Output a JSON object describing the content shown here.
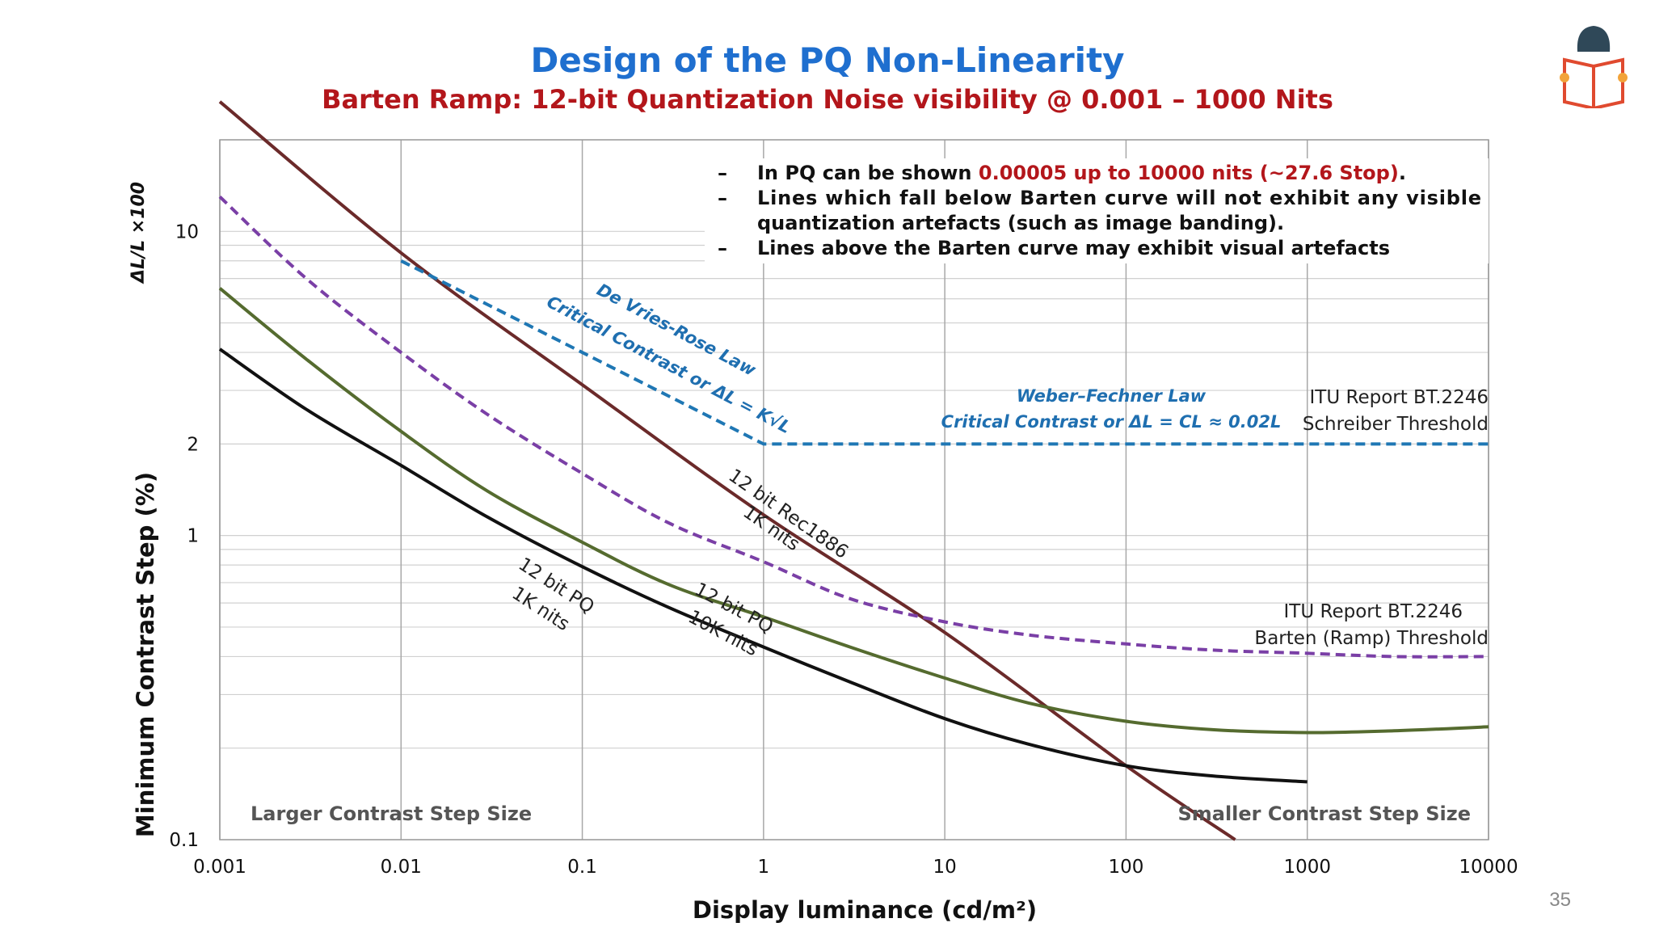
{
  "slide": {
    "title": "Design of the PQ Non-Linearity",
    "subtitle": "Barten Ramp:  12-bit Quantization Noise visibility @ 0.001 – 1000 Nits",
    "page_number": "35",
    "logo_icon": "reader-book-icon"
  },
  "notes": [
    {
      "text_before": "In PQ can be shown ",
      "highlight": "0.00005 up to 10000 nits (~27.6 Stop)",
      "text_after": "."
    },
    {
      "text_before": "Lines which fall below Barten curve will not exhibit any visible",
      "highlight": "",
      "text_after": ""
    },
    {
      "text_before": "quantization artefacts (such as image banding).",
      "highlight": "",
      "text_after": ""
    },
    {
      "text_before": "Lines above the Barten curve may exhibit visual artefacts",
      "highlight": "",
      "text_after": ""
    }
  ],
  "chart_data": {
    "type": "line",
    "xlabel": "Display luminance (cd/m²)",
    "ylabel": "Minimum Contrast Step (%)",
    "ylabel_formula": "ΔL/L ×100",
    "x_scale": "log",
    "y_scale": "log",
    "xlim": [
      0.001,
      10000
    ],
    "ylim": [
      0.1,
      20
    ],
    "x_ticks": [
      0.001,
      0.01,
      0.1,
      1,
      10,
      100,
      1000,
      10000
    ],
    "x_tick_labels": [
      "0.001",
      "0.01",
      "0.1",
      "1",
      "10",
      "100",
      "1000",
      "10000"
    ],
    "y_ticks": [
      0.1,
      1,
      2,
      10
    ],
    "y_tick_labels": [
      "0.1",
      "1",
      "2",
      "10"
    ],
    "grid": true,
    "series": [
      {
        "name": "12 bit Rec1886 1K nits",
        "color": "#6b2a2a",
        "dash": "solid",
        "x": [
          0.001,
          0.01,
          0.1,
          1,
          10,
          100,
          400
        ],
        "y": [
          26.7,
          8.5,
          3.13,
          1.17,
          0.48,
          0.175,
          0.1
        ]
      },
      {
        "name": "Barten (Ramp) Threshold",
        "color": "#7a3fa6",
        "dash": "dashed",
        "x": [
          0.001,
          0.003,
          0.01,
          0.03,
          0.1,
          0.3,
          1,
          3,
          10,
          30,
          100,
          300,
          1000,
          3000,
          10000
        ],
        "y": [
          13,
          7.0,
          4.0,
          2.5,
          1.6,
          1.1,
          0.82,
          0.62,
          0.52,
          0.47,
          0.44,
          0.42,
          0.41,
          0.4,
          0.4
        ]
      },
      {
        "name": "De Vries-Rose / Weber-Fechner (Schreiber Threshold)",
        "color": "#1f77b4",
        "dash": "dashed",
        "x": [
          0.01,
          1,
          10000
        ],
        "y": [
          8.0,
          2.0,
          2.0
        ]
      },
      {
        "name": "12 bit PQ 10K nits",
        "color": "#556b2f",
        "dash": "solid",
        "x": [
          0.001,
          0.003,
          0.01,
          0.03,
          0.1,
          0.3,
          1,
          3,
          10,
          30,
          100,
          300,
          1000,
          3000,
          10000
        ],
        "y": [
          6.5,
          3.8,
          2.2,
          1.4,
          0.95,
          0.69,
          0.54,
          0.43,
          0.34,
          0.28,
          0.245,
          0.23,
          0.225,
          0.228,
          0.235
        ]
      },
      {
        "name": "12 bit PQ 1K nits",
        "color": "#111111",
        "dash": "solid",
        "x": [
          0.001,
          0.003,
          0.01,
          0.03,
          0.1,
          0.3,
          1,
          3,
          10,
          30,
          100,
          300,
          1000
        ],
        "y": [
          4.1,
          2.6,
          1.7,
          1.15,
          0.79,
          0.58,
          0.43,
          0.33,
          0.25,
          0.205,
          0.175,
          0.162,
          0.155
        ]
      }
    ],
    "annotations": {
      "de_vries_title": "De Vries-Rose Law",
      "de_vries_formula": "Critical Contrast or ΔL = K√L",
      "weber_title": "Weber–Fechner Law",
      "weber_formula": "Critical Contrast or ΔL = CL ≈  0.02L",
      "schreiber_line1": "ITU Report BT.2246",
      "schreiber_line2": "Schreiber Threshold",
      "barten_line1": "ITU Report BT.2246",
      "barten_line2": "Barten (Ramp) Threshold",
      "rec1886_line1": "12 bit Rec1886",
      "rec1886_line2": "1K nits",
      "pq10k_line1": "12 bit PQ",
      "pq10k_line2": "10K nits",
      "pq1k_line1": "12 bit PQ",
      "pq1k_line2": "1K nits",
      "larger_step": "Larger Contrast Step Size",
      "smaller_step": "Smaller Contrast Step Size"
    }
  }
}
